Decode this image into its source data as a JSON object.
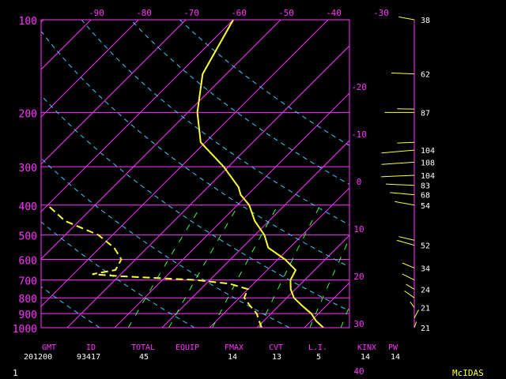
{
  "colors": {
    "frame": "#ff33ff",
    "isotherm": "#ff33ff",
    "temperature": "#ffff33",
    "dewpoint": "#ffff33",
    "dry_adiabat": "#33ccff",
    "mixing_ratio": "#33ff33",
    "wind": "#ffff33",
    "stat_value": "#ffffff",
    "footer_logo": "#ffff33"
  },
  "chart_data": {
    "type": "line",
    "diagram": "skew-t log-p",
    "pressure_axis": {
      "ticks": [
        1000,
        900,
        800,
        700,
        600,
        500,
        400,
        300,
        200,
        100
      ],
      "tick_labels": [
        "1000",
        "900",
        "800",
        "700",
        "600",
        "500",
        "400",
        "300",
        "200",
        "100"
      ],
      "scale": "log"
    },
    "top_temp_ticks": [
      {
        "value": -90,
        "label": "-90"
      },
      {
        "value": -80,
        "label": "-80"
      },
      {
        "value": -70,
        "label": "-70"
      },
      {
        "value": -60,
        "label": "-60"
      },
      {
        "value": -50,
        "label": "-50"
      },
      {
        "value": -40,
        "label": "-40"
      },
      {
        "value": -30,
        "label": "-30"
      }
    ],
    "right_temp_ticks": [
      {
        "value": -20,
        "label": "-20"
      },
      {
        "value": -10,
        "label": "-10"
      },
      {
        "value": 0,
        "label": "0"
      },
      {
        "value": 10,
        "label": "10"
      },
      {
        "value": 20,
        "label": "20"
      },
      {
        "value": 30,
        "label": "30"
      },
      {
        "value": 40,
        "label": "40"
      }
    ],
    "isotherms_c": [
      -110,
      -100,
      -90,
      -80,
      -70,
      -60,
      -50,
      -40,
      -30,
      -20,
      -10,
      0,
      10,
      20,
      30,
      40
    ],
    "dry_adiabats_theta_k": [
      250,
      270,
      290,
      310,
      330,
      350,
      370,
      390
    ],
    "mixing_ratio_lines": [
      1,
      2,
      4,
      8,
      16,
      24
    ],
    "temperature": [
      {
        "p": 1000,
        "t": 24
      },
      {
        "p": 950,
        "t": 21
      },
      {
        "p": 900,
        "t": 18.5
      },
      {
        "p": 850,
        "t": 15
      },
      {
        "p": 800,
        "t": 11.5
      },
      {
        "p": 750,
        "t": 9
      },
      {
        "p": 700,
        "t": 7
      },
      {
        "p": 650,
        "t": 6
      },
      {
        "p": 600,
        "t": 1.5
      },
      {
        "p": 550,
        "t": -4.5
      },
      {
        "p": 500,
        "t": -8
      },
      {
        "p": 450,
        "t": -13
      },
      {
        "p": 400,
        "t": -17.5
      },
      {
        "p": 370,
        "t": -21.5
      },
      {
        "p": 350,
        "t": -23.5
      },
      {
        "p": 300,
        "t": -31
      },
      {
        "p": 250,
        "t": -41
      },
      {
        "p": 200,
        "t": -48
      },
      {
        "p": 150,
        "t": -55
      },
      {
        "p": 100,
        "t": -60
      }
    ],
    "dewpoint": [
      {
        "p": 1000,
        "t": 11
      },
      {
        "p": 950,
        "t": 9
      },
      {
        "p": 900,
        "t": 7
      },
      {
        "p": 850,
        "t": 4
      },
      {
        "p": 800,
        "t": 1
      },
      {
        "p": 750,
        "t": 0
      },
      {
        "p": 720,
        "t": -5
      },
      {
        "p": 700,
        "t": -13
      },
      {
        "p": 680,
        "t": -30
      },
      {
        "p": 670,
        "t": -36
      },
      {
        "p": 650,
        "t": -32
      },
      {
        "p": 600,
        "t": -33
      },
      {
        "p": 550,
        "t": -37
      },
      {
        "p": 500,
        "t": -43
      },
      {
        "p": 450,
        "t": -53
      },
      {
        "p": 400,
        "t": -60
      }
    ],
    "winds": [
      {
        "p": 1000,
        "dir": 170,
        "label": "21"
      },
      {
        "p": 930,
        "dir": 165,
        "label": ""
      },
      {
        "p": 860,
        "dir": 200,
        "label": "21"
      },
      {
        "p": 800,
        "dir": 215,
        "label": ""
      },
      {
        "p": 750,
        "dir": 220,
        "label": "24"
      },
      {
        "p": 700,
        "dir": 225,
        "label": ""
      },
      {
        "p": 640,
        "dir": 230,
        "label": "34"
      },
      {
        "p": 540,
        "dir": 240,
        "label": "52"
      },
      {
        "p": 520,
        "dir": 245,
        "label": ""
      },
      {
        "p": 400,
        "dir": 250,
        "label": "54"
      },
      {
        "p": 370,
        "dir": 260,
        "label": "68"
      },
      {
        "p": 345,
        "dir": 265,
        "label": "83"
      },
      {
        "p": 320,
        "dir": 275,
        "label": "104"
      },
      {
        "p": 290,
        "dir": 278,
        "label": "108"
      },
      {
        "p": 265,
        "dir": 280,
        "label": "104"
      },
      {
        "p": 250,
        "dir": 275,
        "label": ""
      },
      {
        "p": 200,
        "dir": 270,
        "label": "87"
      },
      {
        "p": 195,
        "dir": 268,
        "label": ""
      },
      {
        "p": 150,
        "dir": 265,
        "label": "62"
      },
      {
        "p": 100,
        "dir": 250,
        "label": "38"
      }
    ]
  },
  "stats": {
    "columns": [
      {
        "key": "gmt",
        "label": "GMT",
        "value": "201200"
      },
      {
        "key": "id",
        "label": "ID",
        "value": "93417"
      },
      {
        "key": "total",
        "label": "TOTAL",
        "value": "45"
      },
      {
        "key": "equip",
        "label": "EQUIP",
        "value": ""
      },
      {
        "key": "fmax",
        "label": "FMAX",
        "value": "14"
      },
      {
        "key": "cvt",
        "label": "CVT",
        "value": "13"
      },
      {
        "key": "li",
        "label": "L.I.",
        "value": "5"
      },
      {
        "key": "kinx",
        "label": "KINX",
        "value": "14"
      },
      {
        "key": "pw",
        "label": "PW",
        "value": "14"
      }
    ]
  },
  "footer": {
    "frame_number": "1",
    "logo": "McIDAS"
  }
}
